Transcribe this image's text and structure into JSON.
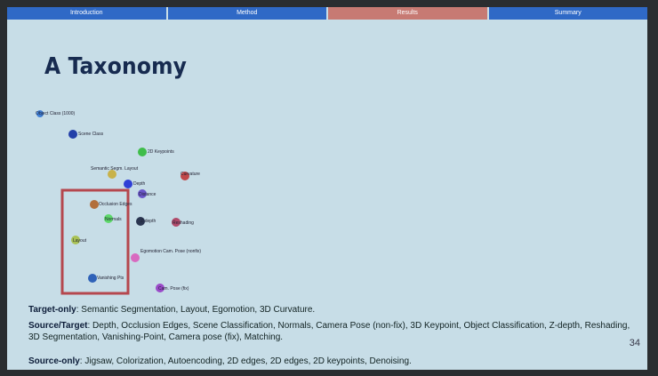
{
  "nav": {
    "tabs": [
      {
        "label": "Introduction"
      },
      {
        "label": "Method"
      },
      {
        "label": "Results"
      },
      {
        "label": "Summary"
      }
    ]
  },
  "slide": {
    "title": "A Taxonomy",
    "page_number": "34"
  },
  "plot": {
    "points": [
      {
        "label": "Object Class (1000)",
        "color": "#3f7fd6"
      },
      {
        "label": "Scene Class",
        "color": "#233fa8"
      },
      {
        "label": "2D Keypoints",
        "color": "#3fbd4a"
      },
      {
        "label": "Semantic Segm. Layout",
        "color": "#c8b24a"
      },
      {
        "label": "Curvature",
        "color": "#c0484a"
      },
      {
        "label": "Depth",
        "color": "#2f3fd6"
      },
      {
        "label": "Distance",
        "color": "#6a55c9"
      },
      {
        "label": "Occlusion Edges",
        "color": "#b26f3c"
      },
      {
        "label": "Normals",
        "color": "#5dd86a"
      },
      {
        "label": "Z-depth",
        "color": "#2a3550"
      },
      {
        "label": "Reshading",
        "color": "#b04a6a"
      },
      {
        "label": "Layout",
        "color": "#a9c255"
      },
      {
        "label": "Egomotion Cam. Pose (nonfix)",
        "color": "#d86ac0"
      },
      {
        "label": "Vanishing Pts",
        "color": "#2f62b8"
      },
      {
        "label": "Cam. Pose (fix)",
        "color": "#9a4ac8"
      }
    ]
  },
  "captions": {
    "target_only": {
      "label": "Target-only",
      "text": ": Semantic Segmentation, Layout, Egomotion, 3D Curvature."
    },
    "source_target": {
      "label": "Source/Target",
      "text": ": Depth, Occlusion Edges, Scene Classification, Normals, Camera Pose (non-fix), 3D Keypoint, Object Classification, Z-depth, Reshading, 3D Segmentation, Vanishing-Point, Camera pose (fix), Matching."
    },
    "source_only": {
      "label": "Source-only",
      "text": ": Jigsaw, Colorization, Autoencoding, 2D edges, 2D edges, 2D keypoints, Denoising."
    }
  }
}
